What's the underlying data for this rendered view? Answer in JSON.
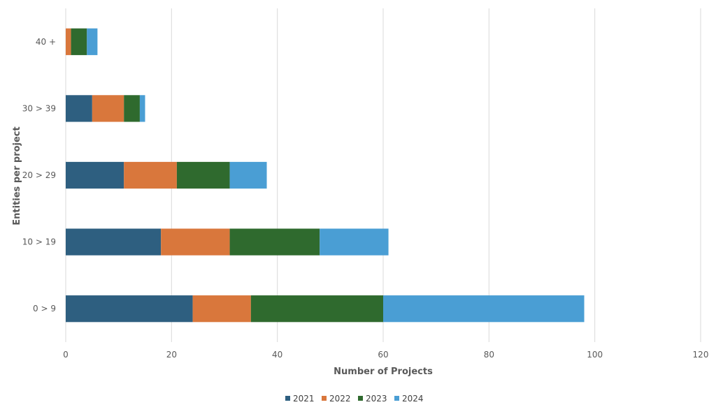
{
  "chart_data": {
    "type": "bar",
    "orientation": "horizontal",
    "stacked": true,
    "title": "",
    "xlabel": "Number of Projects",
    "ylabel": "Entities per project",
    "xlim": [
      0,
      120
    ],
    "xticks": [
      0,
      20,
      40,
      60,
      80,
      100,
      120
    ],
    "xtick_labels": [
      "0",
      "20",
      "40",
      "60",
      "80",
      "100",
      "120"
    ],
    "categories": [
      "0 > 9",
      "10 > 19",
      "20 > 29",
      "30 > 39",
      "40 +"
    ],
    "series": [
      {
        "name": "2021",
        "color": "#2e5f80",
        "values": [
          24,
          18,
          11,
          5,
          0
        ]
      },
      {
        "name": "2022",
        "color": "#d9773c",
        "values": [
          11,
          13,
          10,
          6,
          1
        ]
      },
      {
        "name": "2023",
        "color": "#2f6a2e",
        "values": [
          25,
          17,
          10,
          3,
          3
        ]
      },
      {
        "name": "2024",
        "color": "#4a9ed4",
        "values": [
          38,
          13,
          7,
          1,
          2
        ]
      }
    ],
    "grid": "vertical",
    "legend_position": "bottom"
  }
}
